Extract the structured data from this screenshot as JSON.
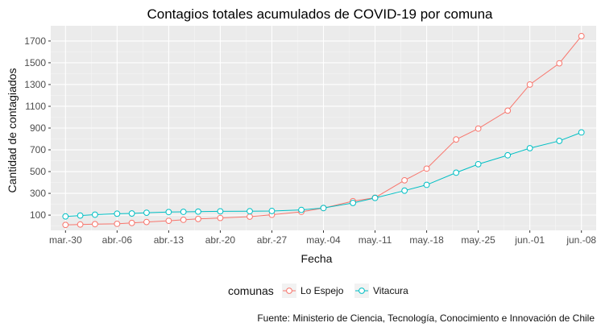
{
  "chart_data": {
    "type": "line",
    "title": "Contagios totales acumulados de COVID-19 por comuna",
    "xlabel": "Fecha",
    "ylabel": "Cantidad de contagiados",
    "caption": "Fuente: Ministerio de Ciencia, Tecnología, Conocimiento e Innovación de Chile",
    "legend": {
      "title": "comunas",
      "position": "bottom"
    },
    "grid": true,
    "x_ticks": [
      {
        "date": "2020-03-30",
        "label": "mar.-30"
      },
      {
        "date": "2020-04-06",
        "label": "abr.-06"
      },
      {
        "date": "2020-04-13",
        "label": "abr.-13"
      },
      {
        "date": "2020-04-20",
        "label": "abr.-20"
      },
      {
        "date": "2020-04-27",
        "label": "abr.-27"
      },
      {
        "date": "2020-05-04",
        "label": "may.-04"
      },
      {
        "date": "2020-05-11",
        "label": "may.-11"
      },
      {
        "date": "2020-05-18",
        "label": "may.-18"
      },
      {
        "date": "2020-05-25",
        "label": "may.-25"
      },
      {
        "date": "2020-06-01",
        "label": "jun.-01"
      },
      {
        "date": "2020-06-08",
        "label": "jun.-08"
      }
    ],
    "xlim": [
      "2020-03-28",
      "2020-06-10"
    ],
    "y_ticks": [
      100,
      300,
      500,
      700,
      900,
      1100,
      1300,
      1500,
      1700
    ],
    "ylim": [
      -40,
      1840
    ],
    "series": [
      {
        "name": "Lo Espejo",
        "color": "#F8766D",
        "points": [
          {
            "x": "2020-03-30",
            "y": 10
          },
          {
            "x": "2020-04-01",
            "y": 14
          },
          {
            "x": "2020-04-03",
            "y": 17
          },
          {
            "x": "2020-04-06",
            "y": 20
          },
          {
            "x": "2020-04-08",
            "y": 28
          },
          {
            "x": "2020-04-10",
            "y": 37
          },
          {
            "x": "2020-04-13",
            "y": 48
          },
          {
            "x": "2020-04-15",
            "y": 57
          },
          {
            "x": "2020-04-17",
            "y": 65
          },
          {
            "x": "2020-04-20",
            "y": 74
          },
          {
            "x": "2020-04-24",
            "y": 86
          },
          {
            "x": "2020-04-27",
            "y": 103
          },
          {
            "x": "2020-05-01",
            "y": 130
          },
          {
            "x": "2020-05-04",
            "y": 165
          },
          {
            "x": "2020-05-08",
            "y": 228
          },
          {
            "x": "2020-05-11",
            "y": 260
          },
          {
            "x": "2020-05-15",
            "y": 420
          },
          {
            "x": "2020-05-18",
            "y": 527
          },
          {
            "x": "2020-05-22",
            "y": 795
          },
          {
            "x": "2020-05-25",
            "y": 895
          },
          {
            "x": "2020-05-29",
            "y": 1060
          },
          {
            "x": "2020-06-01",
            "y": 1300
          },
          {
            "x": "2020-06-05",
            "y": 1495
          },
          {
            "x": "2020-06-08",
            "y": 1745
          }
        ]
      },
      {
        "name": "Vitacura",
        "color": "#00BFC4",
        "points": [
          {
            "x": "2020-03-30",
            "y": 88
          },
          {
            "x": "2020-04-01",
            "y": 96
          },
          {
            "x": "2020-04-03",
            "y": 104
          },
          {
            "x": "2020-04-06",
            "y": 113
          },
          {
            "x": "2020-04-08",
            "y": 115
          },
          {
            "x": "2020-04-10",
            "y": 122
          },
          {
            "x": "2020-04-13",
            "y": 128
          },
          {
            "x": "2020-04-15",
            "y": 130
          },
          {
            "x": "2020-04-17",
            "y": 132
          },
          {
            "x": "2020-04-20",
            "y": 135
          },
          {
            "x": "2020-04-24",
            "y": 136
          },
          {
            "x": "2020-04-27",
            "y": 138
          },
          {
            "x": "2020-05-01",
            "y": 148
          },
          {
            "x": "2020-05-04",
            "y": 165
          },
          {
            "x": "2020-05-08",
            "y": 212
          },
          {
            "x": "2020-05-11",
            "y": 258
          },
          {
            "x": "2020-05-15",
            "y": 325
          },
          {
            "x": "2020-05-18",
            "y": 378
          },
          {
            "x": "2020-05-22",
            "y": 490
          },
          {
            "x": "2020-05-25",
            "y": 568
          },
          {
            "x": "2020-05-29",
            "y": 650
          },
          {
            "x": "2020-06-01",
            "y": 715
          },
          {
            "x": "2020-06-05",
            "y": 782
          },
          {
            "x": "2020-06-08",
            "y": 860
          }
        ]
      }
    ]
  }
}
